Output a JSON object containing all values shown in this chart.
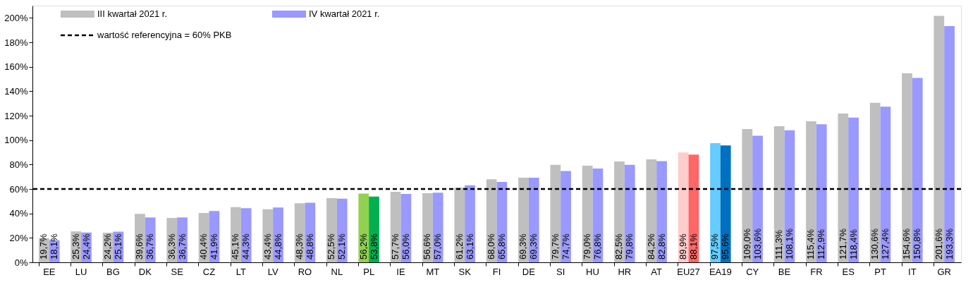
{
  "chart_data": {
    "type": "bar",
    "categories": [
      "EE",
      "LU",
      "BG",
      "DK",
      "SE",
      "CZ",
      "LT",
      "LV",
      "RO",
      "NL",
      "PL",
      "IE",
      "MT",
      "SK",
      "FI",
      "DE",
      "SI",
      "HU",
      "HR",
      "AT",
      "EU27",
      "EA19",
      "CY",
      "BE",
      "FR",
      "ES",
      "PT",
      "IT",
      "GR"
    ],
    "series": [
      {
        "name": "III kwartał 2021 r.",
        "color": "#bfbfbf",
        "colors": [
          "#bfbfbf",
          "#bfbfbf",
          "#bfbfbf",
          "#bfbfbf",
          "#bfbfbf",
          "#bfbfbf",
          "#bfbfbf",
          "#bfbfbf",
          "#bfbfbf",
          "#bfbfbf",
          "#92d050",
          "#bfbfbf",
          "#bfbfbf",
          "#bfbfbf",
          "#bfbfbf",
          "#bfbfbf",
          "#bfbfbf",
          "#bfbfbf",
          "#bfbfbf",
          "#bfbfbf",
          "#ffcccc",
          "#66ccff",
          "#bfbfbf",
          "#bfbfbf",
          "#bfbfbf",
          "#bfbfbf",
          "#bfbfbf",
          "#bfbfbf",
          "#bfbfbf"
        ],
        "values": [
          19.7,
          25.3,
          24.2,
          39.6,
          36.3,
          40.4,
          45.1,
          43.4,
          48.3,
          52.5,
          56.2,
          57.7,
          56.6,
          61.2,
          68.0,
          69.3,
          79.7,
          79.0,
          82.5,
          84.2,
          89.9,
          97.5,
          109.0,
          111.3,
          115.4,
          121.7,
          130.6,
          154.6,
          201.6
        ],
        "value_labels": [
          "19,7%",
          "25,3%",
          "24,2%",
          "39,6%",
          "36,3%",
          "40,4%",
          "45,1%",
          "43,4%",
          "48,3%",
          "52,5%",
          "56,2%",
          "57,7%",
          "56,6%",
          "61,2%",
          "68,0%",
          "69,3%",
          "79,7%",
          "79,0%",
          "82,5%",
          "84,2%",
          "89,9%",
          "97,5%",
          "109,0%",
          "111,3%",
          "115,4%",
          "121,7%",
          "130,6%",
          "154,6%",
          "201,6%"
        ]
      },
      {
        "name": "IV kwartał 2021 r.",
        "color": "#9999ff",
        "colors": [
          "#9999ff",
          "#9999ff",
          "#9999ff",
          "#9999ff",
          "#9999ff",
          "#9999ff",
          "#9999ff",
          "#9999ff",
          "#9999ff",
          "#9999ff",
          "#00b050",
          "#9999ff",
          "#9999ff",
          "#9999ff",
          "#9999ff",
          "#9999ff",
          "#9999ff",
          "#9999ff",
          "#9999ff",
          "#9999ff",
          "#ff6666",
          "#0070c0",
          "#9999ff",
          "#9999ff",
          "#9999ff",
          "#9999ff",
          "#9999ff",
          "#9999ff",
          "#9999ff"
        ],
        "values": [
          18.1,
          24.4,
          25.1,
          36.7,
          36.7,
          41.9,
          44.3,
          44.8,
          48.8,
          52.1,
          53.8,
          56.0,
          57.0,
          63.1,
          65.8,
          69.3,
          74.7,
          76.8,
          79.8,
          82.8,
          88.1,
          95.6,
          103.6,
          108.1,
          112.9,
          118.4,
          127.4,
          150.8,
          193.3
        ],
        "value_labels": [
          "18,1%",
          "24,4%",
          "25,1%",
          "36,7%",
          "36,7%",
          "41,9%",
          "44,3%",
          "44,8%",
          "48,8%",
          "52,1%",
          "53,8%",
          "56,0%",
          "57,0%",
          "63,1%",
          "65,8%",
          "69,3%",
          "74,7%",
          "76,8%",
          "79,8%",
          "82,8%",
          "88,1%",
          "95,6%",
          "103,6%",
          "108,1%",
          "112,9%",
          "118,4%",
          "127,4%",
          "150,8%",
          "193,3%"
        ]
      }
    ],
    "ylim": [
      0,
      210
    ],
    "yticks": [
      {
        "value": 0,
        "label": "0%"
      },
      {
        "value": 20,
        "label": "20%"
      },
      {
        "value": 40,
        "label": "40%"
      },
      {
        "value": 60,
        "label": "60%"
      },
      {
        "value": 80,
        "label": "80%"
      },
      {
        "value": 100,
        "label": "100%"
      },
      {
        "value": 120,
        "label": "120%"
      },
      {
        "value": 140,
        "label": "140%"
      },
      {
        "value": 160,
        "label": "160%"
      },
      {
        "value": 180,
        "label": "180%"
      },
      {
        "value": 200,
        "label": "200%"
      }
    ],
    "ref_lines": [
      {
        "axis": "y",
        "value": 60,
        "label": "wartość referencyjna = 60% PKB",
        "color": "#000000",
        "line_style": "dashed"
      }
    ],
    "legend": "top left",
    "grid": false
  }
}
